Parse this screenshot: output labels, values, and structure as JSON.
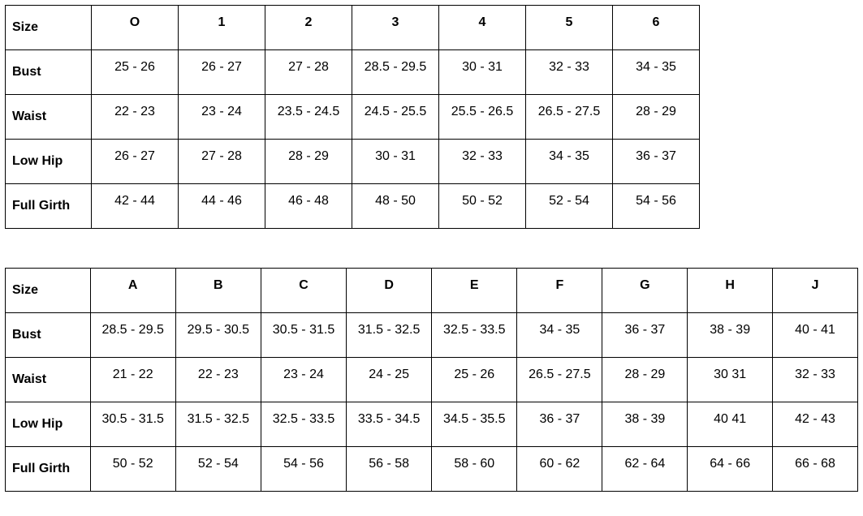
{
  "table1": {
    "row_labels": [
      "Size",
      "Bust",
      "Waist",
      "Low Hip",
      "Full Girth"
    ],
    "columns": [
      "O",
      "1",
      "2",
      "3",
      "4",
      "5",
      "6"
    ],
    "rows": [
      [
        "25 - 26",
        "26 - 27",
        "27 - 28",
        "28.5 - 29.5",
        "30 - 31",
        "32 - 33",
        "34 - 35"
      ],
      [
        "22 - 23",
        "23 - 24",
        "23.5 - 24.5",
        "24.5 - 25.5",
        "25.5 - 26.5",
        "26.5 - 27.5",
        "28 - 29"
      ],
      [
        "26 - 27",
        "27 - 28",
        "28 - 29",
        "30 - 31",
        "32 - 33",
        "34 - 35",
        "36 - 37"
      ],
      [
        "42 - 44",
        "44 - 46",
        "46 - 48",
        "48 - 50",
        "50 - 52",
        "52 - 54",
        "54 - 56"
      ]
    ]
  },
  "table2": {
    "row_labels": [
      "Size",
      "Bust",
      "Waist",
      "Low Hip",
      "Full Girth"
    ],
    "columns": [
      "A",
      "B",
      "C",
      "D",
      "E",
      "F",
      "G",
      "H",
      "J"
    ],
    "rows": [
      [
        "28.5 - 29.5",
        "29.5 - 30.5",
        "30.5 - 31.5",
        "31.5 - 32.5",
        "32.5 - 33.5",
        "34 - 35",
        "36 - 37",
        "38 - 39",
        "40 - 41"
      ],
      [
        "21 - 22",
        "22 - 23",
        "23 - 24",
        "24 - 25",
        "25 - 26",
        "26.5 - 27.5",
        "28 - 29",
        "30  31",
        "32 - 33"
      ],
      [
        "30.5 - 31.5",
        "31.5 - 32.5",
        "32.5 - 33.5",
        "33.5 - 34.5",
        "34.5 - 35.5",
        "36 - 37",
        "38 - 39",
        "40  41",
        "42 - 43"
      ],
      [
        "50 - 52",
        "52 - 54",
        "54 - 56",
        "56 - 58",
        "58 - 60",
        "60 - 62",
        "62 - 64",
        "64 - 66",
        "66 - 68"
      ]
    ]
  }
}
